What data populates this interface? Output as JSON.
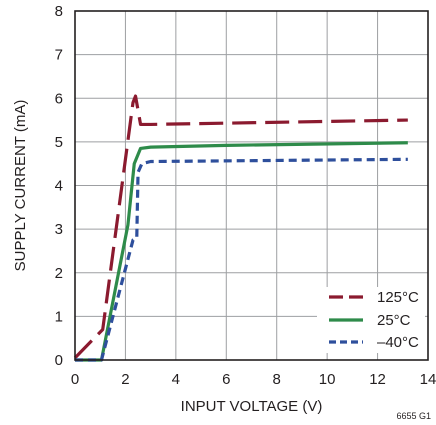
{
  "chart_data": {
    "type": "line",
    "title": "",
    "xlabel": "INPUT VOLTAGE (V)",
    "ylabel": "SUPPLY CURRENT (mA)",
    "xlim": [
      0,
      14
    ],
    "ylim": [
      0,
      8
    ],
    "xticks": [
      0,
      2,
      4,
      6,
      8,
      10,
      12,
      14
    ],
    "yticks": [
      0,
      1,
      2,
      3,
      4,
      5,
      6,
      7,
      8
    ],
    "grid": true,
    "legend_position": "bottom-right",
    "figure_id": "6655 G1",
    "series": [
      {
        "name": "125°C",
        "color": "#8b1a2f",
        "dash": "long-dash",
        "x": [
          0,
          1.1,
          2.3,
          2.4,
          2.6,
          3.0,
          13.2
        ],
        "y": [
          0.05,
          0.7,
          5.9,
          6.05,
          5.4,
          5.4,
          5.5
        ]
      },
      {
        "name": "25°C",
        "color": "#2e8b4a",
        "dash": "solid",
        "x": [
          0,
          1.05,
          2.1,
          2.35,
          2.6,
          3.0,
          6.0,
          13.2
        ],
        "y": [
          0,
          0,
          3.1,
          4.5,
          4.85,
          4.88,
          4.92,
          4.98
        ]
      },
      {
        "name": "–40°C",
        "color": "#2e4f9c",
        "dash": "short-dash",
        "x": [
          0,
          1.05,
          2.3,
          2.45,
          2.5,
          2.65,
          3.0,
          13.2
        ],
        "y": [
          0,
          0,
          2.75,
          2.8,
          4.3,
          4.5,
          4.55,
          4.6
        ]
      }
    ]
  }
}
